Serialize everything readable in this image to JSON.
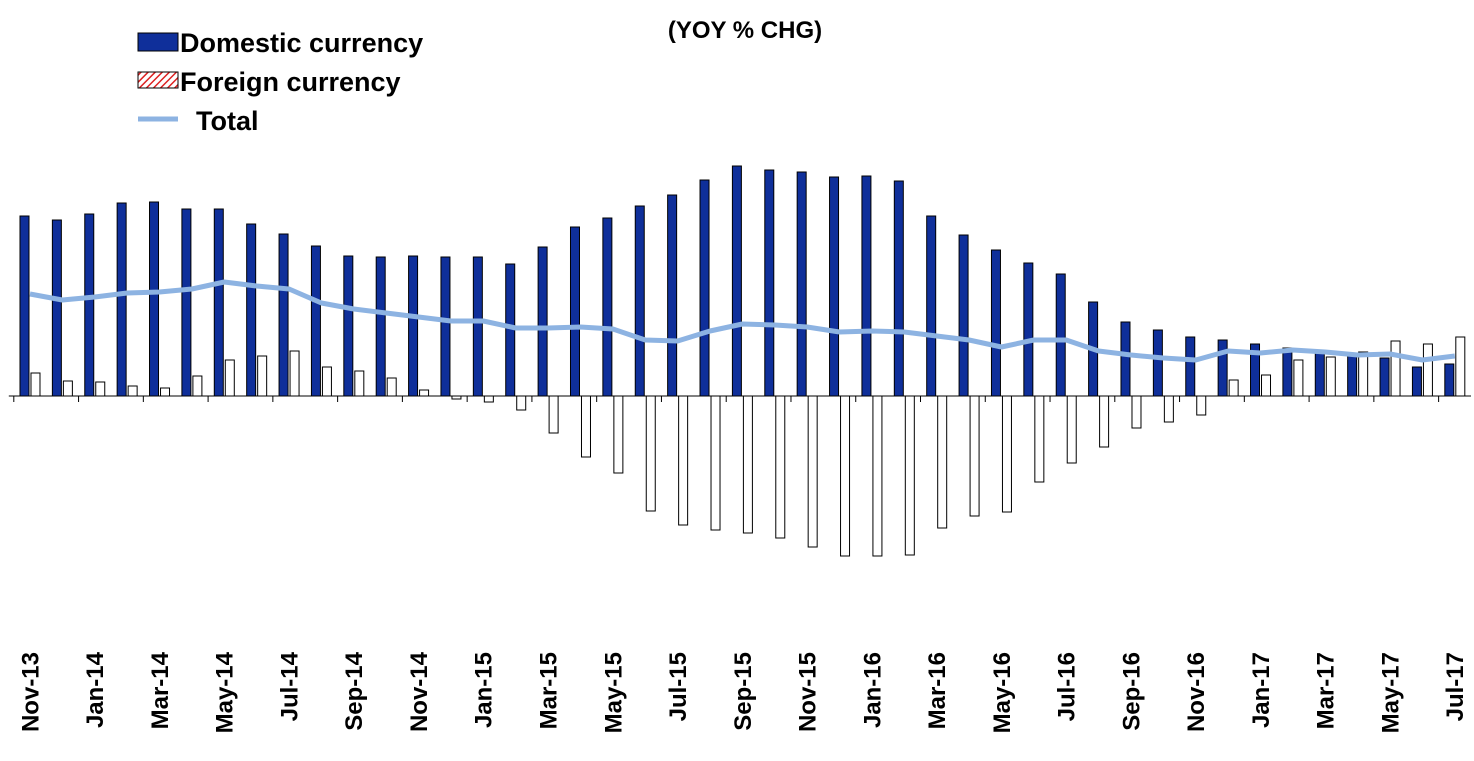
{
  "chart_data": {
    "type": "bar_line",
    "title": "(YOY % CHG)",
    "categories": [
      "Nov-13",
      null,
      "Jan-14",
      null,
      "Mar-14",
      null,
      "May-14",
      null,
      "Jul-14",
      null,
      "Sep-14",
      null,
      "Nov-14",
      null,
      "Jan-15",
      null,
      "Mar-15",
      null,
      "May-15",
      null,
      "Jul-15",
      null,
      "Sep-15",
      null,
      "Nov-15",
      null,
      "Jan-16",
      null,
      "Mar-16",
      null,
      "May-16",
      null,
      "Jul-16",
      null,
      "Sep-16",
      null,
      "Nov-16",
      null,
      "Jan-17",
      null,
      "Mar-17",
      null,
      "May-17",
      null,
      "Jul-17"
    ],
    "series": [
      {
        "name": "Domestic currency",
        "kind": "bar",
        "color": "#0f2f9a",
        "values": [
          18.0,
          17.6,
          18.2,
          19.3,
          19.4,
          18.7,
          18.7,
          17.2,
          16.2,
          15.0,
          14.0,
          13.9,
          14.0,
          13.9,
          13.9,
          13.2,
          14.9,
          16.9,
          17.8,
          19.0,
          20.1,
          21.6,
          23.0,
          22.6,
          22.4,
          21.9,
          22.0,
          21.5,
          18.0,
          16.1,
          14.6,
          13.3,
          12.2,
          9.4,
          7.4,
          6.6,
          5.9,
          5.6,
          5.2,
          4.8,
          4.4,
          4.2,
          3.8,
          2.9,
          3.2
        ]
      },
      {
        "name": "Foreign currency",
        "kind": "bar",
        "color": "#ffffff",
        "values": [
          2.3,
          1.5,
          1.4,
          1.0,
          0.8,
          2.0,
          3.6,
          4.0,
          4.5,
          2.9,
          2.5,
          1.8,
          0.6,
          -0.3,
          -0.6,
          -1.4,
          -3.7,
          -6.1,
          -7.7,
          -11.5,
          -12.9,
          -13.4,
          -13.7,
          -14.2,
          -15.1,
          -16.0,
          -16.0,
          -15.9,
          -13.2,
          -12.0,
          -11.6,
          -8.6,
          -6.7,
          -5.1,
          -3.2,
          -2.6,
          -1.9,
          1.6,
          2.1,
          3.6,
          3.9,
          4.4,
          5.5,
          5.2,
          5.9
        ]
      },
      {
        "name": "Total",
        "kind": "line",
        "color": "#8db3e2",
        "values": [
          10.2,
          9.6,
          9.9,
          10.3,
          10.4,
          10.7,
          11.4,
          11.0,
          10.7,
          9.3,
          8.7,
          8.3,
          7.9,
          7.5,
          7.5,
          6.8,
          6.8,
          6.9,
          6.7,
          5.6,
          5.5,
          6.5,
          7.2,
          7.1,
          6.9,
          6.4,
          6.5,
          6.4,
          6.0,
          5.6,
          4.9,
          5.6,
          5.6,
          4.5,
          4.1,
          3.8,
          3.6,
          4.5,
          4.3,
          4.6,
          4.4,
          4.1,
          4.2,
          3.6,
          4.0
        ]
      }
    ],
    "ylim": [
      -25,
      25
    ]
  }
}
